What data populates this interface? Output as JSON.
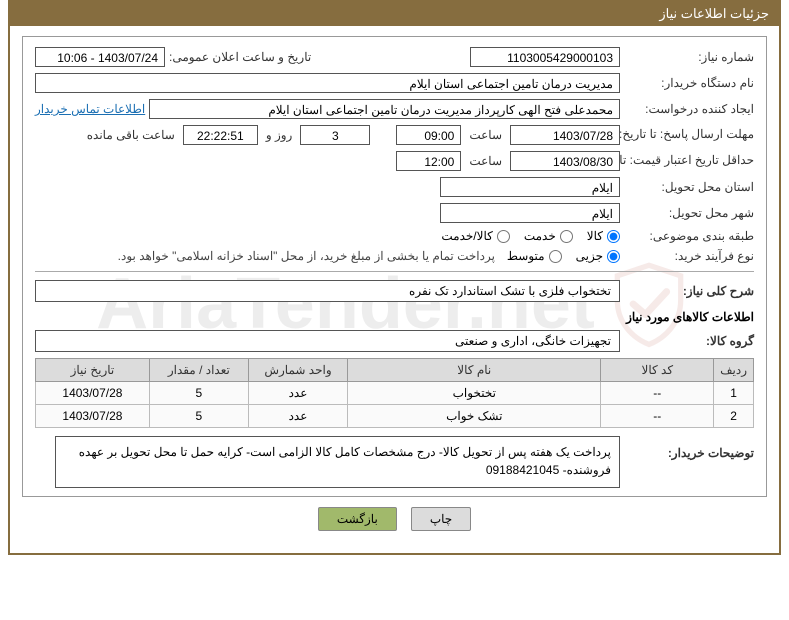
{
  "header": {
    "title": "جزئیات اطلاعات نیاز"
  },
  "labels": {
    "need_no": "شماره نیاز:",
    "announce_dt": "تاریخ و ساعت اعلان عمومی:",
    "buyer_org": "نام دستگاه خریدار:",
    "requester": "ایجاد کننده درخواست:",
    "contact_link": "اطلاعات تماس خریدار",
    "resp_deadline": "مهلت ارسال پاسخ: تا تاریخ:",
    "hour_label": "ساعت",
    "day_and": "روز و",
    "time_remaining": "ساعت باقی مانده",
    "quote_min": "حداقل تاریخ اعتبار قیمت: تا تاریخ:",
    "delivery_province": "استان محل تحویل:",
    "delivery_city": "شهر محل تحویل:",
    "topic_class": "طبقه بندی موضوعی:",
    "purchase_process": "نوع فرآیند خرید:",
    "general_desc": "شرح کلی نیاز:",
    "required_goods_info": "اطلاعات کالاهای مورد نیاز",
    "goods_group": "گروه کالا:",
    "buyer_notes": "توضیحات خریدار:"
  },
  "fields": {
    "need_no": "1103005429000103",
    "announce_dt": "1403/07/24 - 10:06",
    "buyer_org": "مدیریت درمان تامین اجتماعی استان ایلام",
    "requester": "محمدعلی فتح الهی کارپرداز مدیریت درمان تامین اجتماعی استان ایلام",
    "resp_date": "1403/07/28",
    "resp_time": "09:00",
    "days_remaining": "3",
    "countdown": "22:22:51",
    "quote_date": "1403/08/30",
    "quote_time": "12:00",
    "province": "ایلام",
    "city": "ایلام",
    "general_desc_text": "تختخواب فلزی با تشک استاندارد تک نفره",
    "goods_group": "تجهیزات خانگی، اداری و صنعتی",
    "buyer_notes": "پرداخت یک هفته  پس از تحویل کالا- درج مشخصات کامل کالا الزامی است- کرایه حمل تا محل تحویل بر عهده فروشنده- 09188421045"
  },
  "radios": {
    "topic": {
      "options": [
        {
          "name": "کالا",
          "checked": true
        },
        {
          "name": "خدمت",
          "checked": false
        },
        {
          "name": "کالا/خدمت",
          "checked": false
        }
      ]
    },
    "process": {
      "options": [
        {
          "name": "جزیی",
          "checked": true
        },
        {
          "name": "متوسط",
          "checked": false
        }
      ],
      "note": "پرداخت تمام یا بخشی از مبلغ خرید، از محل \"اسناد خزانه اسلامی\" خواهد بود."
    }
  },
  "table": {
    "columns": [
      "ردیف",
      "کد کالا",
      "نام کالا",
      "واحد شمارش",
      "تعداد / مقدار",
      "تاریخ نیاز"
    ],
    "col_widths": [
      "4%",
      "16%",
      "36%",
      "14%",
      "14%",
      "16%"
    ],
    "rows": [
      [
        "1",
        "--",
        "تختخواب",
        "عدد",
        "5",
        "1403/07/28"
      ],
      [
        "2",
        "--",
        "تشک خواب",
        "عدد",
        "5",
        "1403/07/28"
      ]
    ]
  },
  "buttons": {
    "print": "چاپ",
    "back": "بازگشت"
  },
  "watermark": {
    "text": "AriaTender.net"
  },
  "styling": {
    "accent_color": "#866d3f",
    "field_border": "#555555",
    "table_header_bg": "#dcdcdc",
    "link_color": "#1b6fb3",
    "back_btn_bg": "#a1b96b"
  }
}
